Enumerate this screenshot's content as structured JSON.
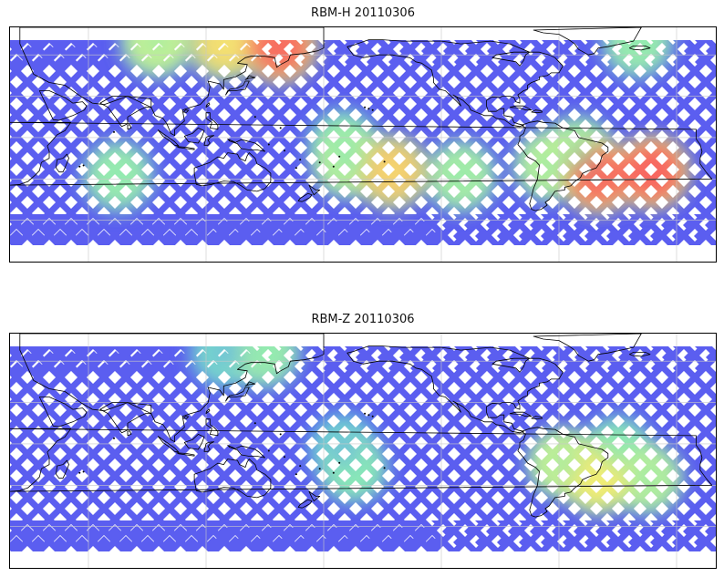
{
  "figure": {
    "panels": [
      {
        "id": "panel-1",
        "title": "RBM-H 20110306",
        "hotspots": [
          {
            "lon": 158,
            "lat": 66,
            "level": 0.95
          },
          {
            "lon": 130,
            "lat": 68,
            "level": 0.75
          },
          {
            "lon": 95,
            "lat": 70,
            "level": 0.6
          },
          {
            "lon": -20,
            "lat": 69,
            "level": 0.45
          },
          {
            "lon": -65,
            "lat": -20,
            "level": 0.55
          },
          {
            "lon": -40,
            "lat": -28,
            "level": 0.95
          },
          {
            "lon": -12,
            "lat": -25,
            "level": 0.98
          },
          {
            "lon": -50,
            "lat": -10,
            "level": 0.5
          },
          {
            "lon": -145,
            "lat": -25,
            "level": 0.8
          },
          {
            "lon": -168,
            "lat": -18,
            "level": 0.55
          },
          {
            "lon": -110,
            "lat": -28,
            "level": 0.5
          },
          {
            "lon": -170,
            "lat": -5,
            "level": 0.4
          },
          {
            "lon": 75,
            "lat": -28,
            "level": 0.45
          }
        ]
      },
      {
        "id": "panel-2",
        "title": "RBM-Z 20110306",
        "hotspots": [
          {
            "lon": -40,
            "lat": -25,
            "level": 0.7
          },
          {
            "lon": -58,
            "lat": -14,
            "level": 0.6
          },
          {
            "lon": -15,
            "lat": -25,
            "level": 0.55
          },
          {
            "lon": -30,
            "lat": -5,
            "level": 0.4
          },
          {
            "lon": 150,
            "lat": 66,
            "level": 0.45
          },
          {
            "lon": 130,
            "lat": 66,
            "level": 0.35
          },
          {
            "lon": -165,
            "lat": -18,
            "level": 0.4
          },
          {
            "lon": -170,
            "lat": -3,
            "level": 0.3
          }
        ]
      }
    ],
    "colors": {
      "low": "#5b5ef0",
      "mid_low": "#5c9cf5",
      "mid": "#7be8c0",
      "mid_high": "#f3f575",
      "high": "#f7625f",
      "coastline": "#000000",
      "grid": "#c8c8c8"
    }
  }
}
